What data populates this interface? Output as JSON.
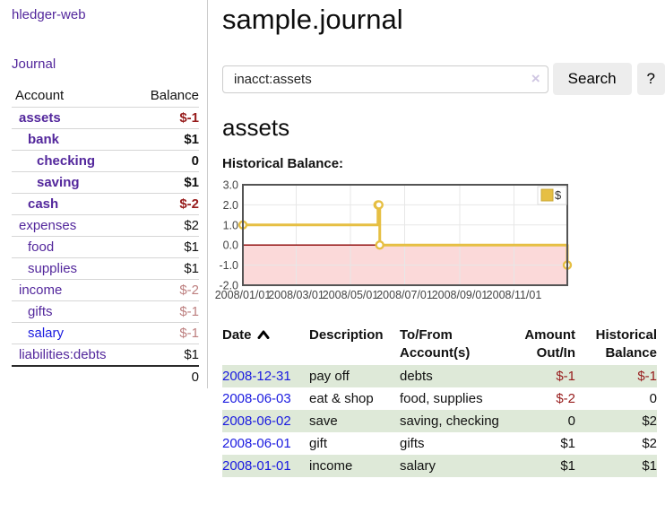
{
  "app": {
    "title": "hledger-web",
    "nav_journal": "Journal"
  },
  "sidebar": {
    "accounts_header": {
      "account": "Account",
      "balance": "Balance"
    },
    "accounts": [
      {
        "name": "assets",
        "depth": 1,
        "bold": true,
        "balance": "$-1",
        "neg": "strong"
      },
      {
        "name": "bank",
        "depth": 2,
        "bold": true,
        "balance": "$1"
      },
      {
        "name": "checking",
        "depth": 3,
        "bold": true,
        "balance": "0"
      },
      {
        "name": "saving",
        "depth": 3,
        "bold": true,
        "balance": "$1"
      },
      {
        "name": "cash",
        "depth": 2,
        "bold": true,
        "balance": "$-2",
        "neg": "strong"
      },
      {
        "name": "expenses",
        "depth": 1,
        "bold": false,
        "balance": "$2"
      },
      {
        "name": "food",
        "depth": 2,
        "bold": false,
        "balance": "$1"
      },
      {
        "name": "supplies",
        "depth": 2,
        "bold": false,
        "balance": "$1"
      },
      {
        "name": "income",
        "depth": 1,
        "bold": false,
        "balance": "$-2",
        "neg": "soft"
      },
      {
        "name": "gifts",
        "depth": 2,
        "bold": false,
        "balance": "$-1",
        "neg": "soft"
      },
      {
        "name": "salary",
        "depth": 2,
        "bold": false,
        "balance": "$-1",
        "neg": "soft",
        "link": "blue"
      },
      {
        "name": "liabilities:debts",
        "depth": 1,
        "bold": false,
        "balance": "$1"
      }
    ],
    "total": "0"
  },
  "header": {
    "title": "sample.journal"
  },
  "search": {
    "value": "inacct:assets",
    "clear_glyph": "×",
    "button_label": "Search",
    "help_label": "?"
  },
  "account_page": {
    "title": "assets",
    "chart_label": "Historical Balance:"
  },
  "chart_data": {
    "type": "line",
    "step": true,
    "title": "Historical Balance:",
    "xlabel": "",
    "ylabel": "",
    "ylim": [
      -2,
      3
    ],
    "x_range": [
      "2008-01-01",
      "2008-12-31"
    ],
    "x_ticks": [
      "2008/01/01",
      "2008/03/01",
      "2008/05/01",
      "2008/07/01",
      "2008/09/01",
      "2008/11/01"
    ],
    "y_ticks": [
      "3.0",
      "2.0",
      "1.0",
      "0.0",
      "-1.0",
      "-2.0"
    ],
    "grid": true,
    "legend": {
      "label": "$",
      "position": "top-right"
    },
    "series": [
      {
        "name": "$",
        "color": "#e6bf43",
        "marker": "circle-open",
        "points": [
          {
            "x": "2008-01-01",
            "y": 1
          },
          {
            "x": "2008-06-01",
            "y": 2
          },
          {
            "x": "2008-06-02",
            "y": 2
          },
          {
            "x": "2008-06-03",
            "y": 0
          },
          {
            "x": "2008-12-31",
            "y": -1
          }
        ]
      }
    ],
    "negative_region_fill": "#fbd9d9",
    "zero_line_color": "#8b0000",
    "plot_border_color": "#545454",
    "grid_color": "#e7e7e7"
  },
  "register": {
    "sort": {
      "column": "Date",
      "direction": "ascending",
      "icon": "chevron-up-icon"
    },
    "columns": [
      {
        "line1": "Date",
        "line2": "",
        "align": "left",
        "sortable": true
      },
      {
        "line1": "Description",
        "line2": "",
        "align": "left"
      },
      {
        "line1": "To/From",
        "line2": "Account(s)",
        "align": "left"
      },
      {
        "line1": "Amount",
        "line2": "Out/In",
        "align": "right"
      },
      {
        "line1": "Historical",
        "line2": "Balance",
        "align": "right"
      }
    ],
    "rows": [
      {
        "date": "2008-12-31",
        "description": "pay off",
        "accounts": "debts",
        "amount": "$-1",
        "amount_neg": true,
        "balance": "$-1",
        "balance_neg": true,
        "shaded": true
      },
      {
        "date": "2008-06-03",
        "description": "eat & shop",
        "accounts": "food, supplies",
        "amount": "$-2",
        "amount_neg": true,
        "balance": "0",
        "balance_neg": false,
        "shaded": false
      },
      {
        "date": "2008-06-02",
        "description": "save",
        "accounts": "saving, checking",
        "amount": "0",
        "amount_neg": false,
        "balance": "$2",
        "balance_neg": false,
        "shaded": true
      },
      {
        "date": "2008-06-01",
        "description": "gift",
        "accounts": "gifts",
        "amount": "$1",
        "amount_neg": false,
        "balance": "$2",
        "balance_neg": false,
        "shaded": false
      },
      {
        "date": "2008-01-01",
        "description": "income",
        "accounts": "salary",
        "amount": "$1",
        "amount_neg": false,
        "balance": "$1",
        "balance_neg": false,
        "shaded": true
      }
    ]
  }
}
